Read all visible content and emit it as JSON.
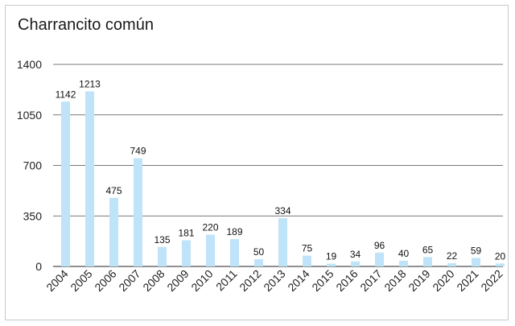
{
  "chart_data": {
    "type": "bar",
    "title": "Charrancito común",
    "xlabel": "",
    "ylabel": "",
    "categories": [
      "2004",
      "2005",
      "2006",
      "2007",
      "2008",
      "2009",
      "2010",
      "2011",
      "2012",
      "2013",
      "2014",
      "2015",
      "2016",
      "2017",
      "2018",
      "2019",
      "2020",
      "2021",
      "2022"
    ],
    "values": [
      1142,
      1213,
      475,
      749,
      135,
      181,
      220,
      189,
      50,
      334,
      75,
      19,
      34,
      96,
      40,
      65,
      22,
      59,
      20
    ],
    "data_labels": [
      "1142",
      "1213",
      "475",
      "749",
      "135",
      "181",
      "220",
      "189",
      "50",
      "334",
      "75",
      "19",
      "34",
      "96",
      "40",
      "65",
      "22",
      "59",
      "20"
    ],
    "ylim": [
      0,
      1400
    ],
    "y_ticks": [
      0,
      350,
      700,
      1050,
      1400
    ],
    "y_tick_labels": [
      "0",
      "350",
      "700",
      "1050",
      "1400"
    ],
    "grid": true,
    "legend": "none",
    "colors": {
      "bar": "#bfe3f8",
      "grid": "#4d4d4d",
      "axis": "#4d4d4d"
    }
  }
}
